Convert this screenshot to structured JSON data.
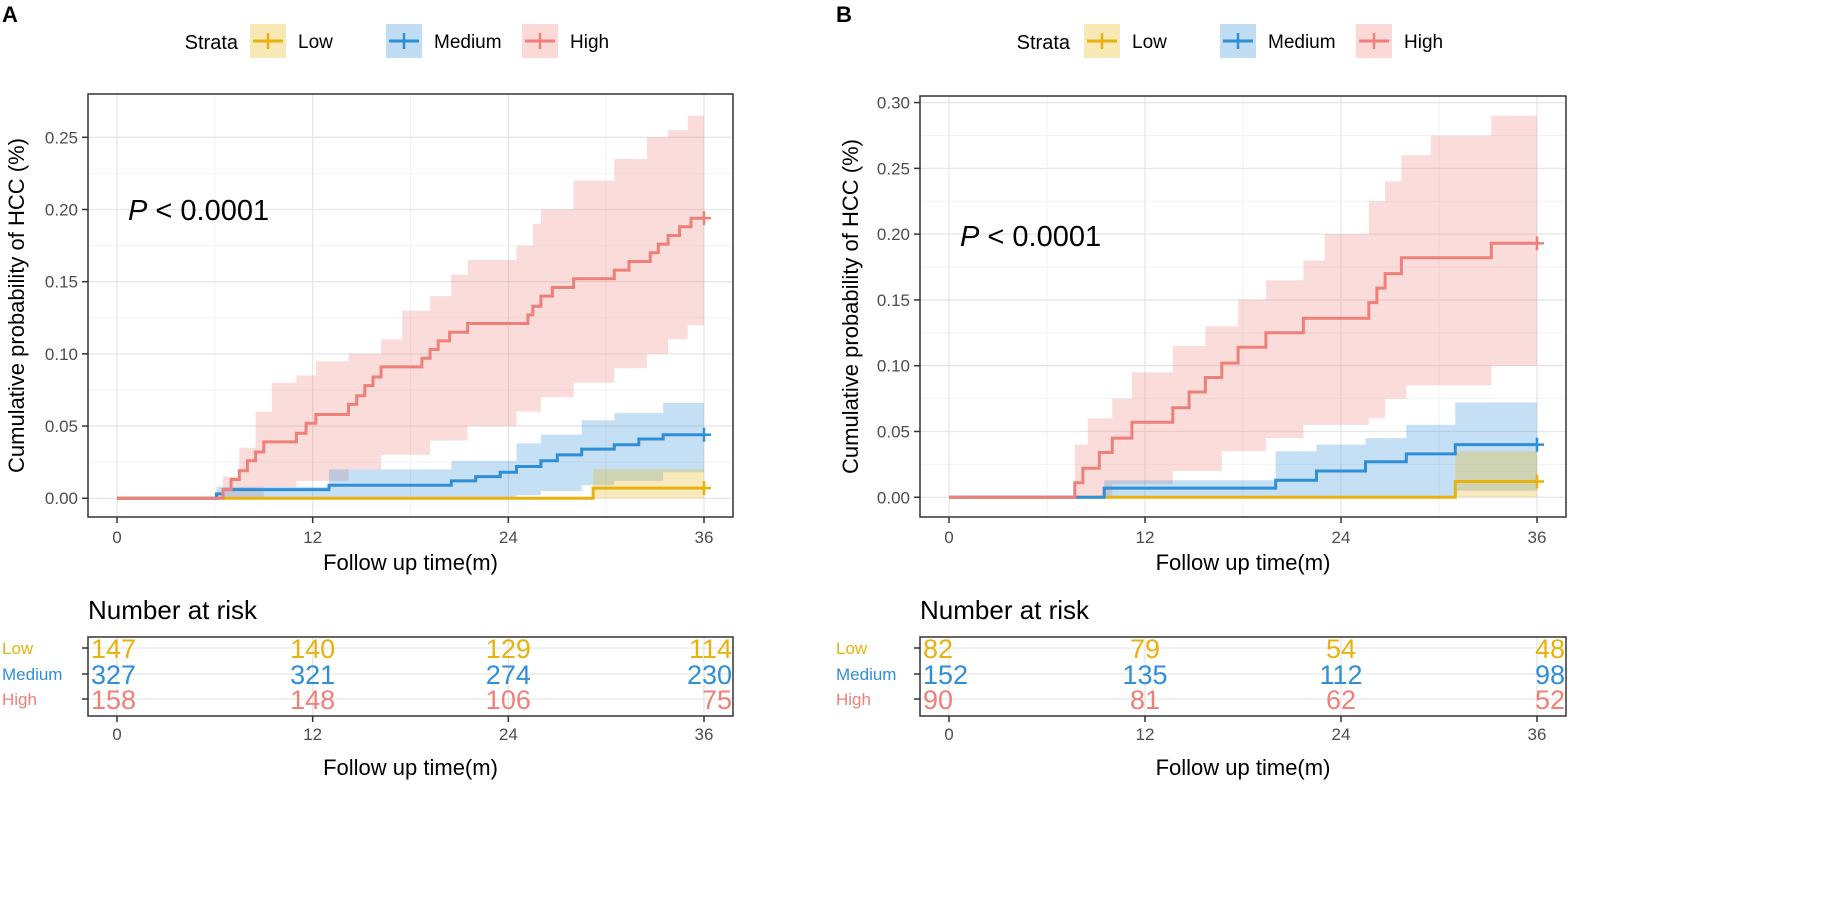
{
  "colors": {
    "low": "#E7B20D",
    "medium": "#2E8FD6",
    "high": "#EE8079",
    "axis": "#333333",
    "grid": "#e6e6e6",
    "tick_text": "#4d4d4d",
    "text": "#000000"
  },
  "chart_data": [
    {
      "type": "line",
      "subtype": "kaplan-meier cumulative incidence with confidence bands",
      "panel_label": "A",
      "legend": {
        "title": "Strata",
        "entries": [
          "Low",
          "Medium",
          "High"
        ],
        "placement": "top"
      },
      "xlabel": "Follow up time(m)",
      "ylabel": "Cumulative  probability of HCC (%)",
      "xlim": [
        0,
        36
      ],
      "ylim": [
        -0.013,
        0.28
      ],
      "xticks": [
        0,
        12,
        24,
        36
      ],
      "xtick_labels": [
        "0",
        "12",
        "24",
        "36"
      ],
      "yticks": [
        0,
        0.05,
        0.1,
        0.15,
        0.2,
        0.25
      ],
      "ytick_labels": [
        "0.00",
        "0.05",
        "0.10",
        "0.15",
        "0.20",
        "0.25"
      ],
      "annotation": {
        "italic": "P",
        "rest": " < 0.0001"
      },
      "series": [
        {
          "name": "Low",
          "steps": [
            [
              0,
              0
            ],
            [
              6.3,
              0
            ],
            [
              29.2,
              0.007
            ],
            [
              36,
              0.007
            ]
          ],
          "lower": [
            [
              6.3,
              0
            ],
            [
              29.2,
              0
            ],
            [
              36,
              0
            ]
          ],
          "upper": [
            [
              6.3,
              0
            ],
            [
              29.2,
              0.02
            ],
            [
              36,
              0.02
            ]
          ]
        },
        {
          "name": "Medium",
          "steps": [
            [
              0,
              0
            ],
            [
              6.1,
              0.003
            ],
            [
              6.5,
              0.006
            ],
            [
              13,
              0.009
            ],
            [
              20.5,
              0.012
            ],
            [
              22,
              0.015
            ],
            [
              23.5,
              0.018
            ],
            [
              24.5,
              0.022
            ],
            [
              26,
              0.026
            ],
            [
              27,
              0.03
            ],
            [
              28.5,
              0.034
            ],
            [
              30.5,
              0.037
            ],
            [
              32,
              0.041
            ],
            [
              33.5,
              0.044
            ],
            [
              36,
              0.044
            ]
          ],
          "lower": [
            [
              6.1,
              0
            ],
            [
              20.5,
              0
            ],
            [
              24.5,
              0.002
            ],
            [
              26,
              0.005
            ],
            [
              28.5,
              0.009
            ],
            [
              30.5,
              0.012
            ],
            [
              33.5,
              0.018
            ],
            [
              36,
              0.022
            ]
          ],
          "upper": [
            [
              6.1,
              0.008
            ],
            [
              13,
              0.02
            ],
            [
              20.5,
              0.026
            ],
            [
              24.5,
              0.038
            ],
            [
              26,
              0.044
            ],
            [
              28.5,
              0.054
            ],
            [
              30.5,
              0.059
            ],
            [
              33.5,
              0.066
            ],
            [
              36,
              0.066
            ]
          ]
        },
        {
          "name": "High",
          "steps": [
            [
              0,
              0
            ],
            [
              6.5,
              0.006
            ],
            [
              7,
              0.013
            ],
            [
              7.5,
              0.019
            ],
            [
              8,
              0.026
            ],
            [
              8.5,
              0.032
            ],
            [
              9,
              0.039
            ],
            [
              11,
              0.045
            ],
            [
              11.6,
              0.052
            ],
            [
              12.2,
              0.058
            ],
            [
              14.2,
              0.065
            ],
            [
              14.7,
              0.071
            ],
            [
              15.2,
              0.078
            ],
            [
              15.7,
              0.084
            ],
            [
              16.2,
              0.091
            ],
            [
              18.7,
              0.097
            ],
            [
              19.2,
              0.103
            ],
            [
              19.7,
              0.109
            ],
            [
              20.4,
              0.115
            ],
            [
              21.5,
              0.121
            ],
            [
              25.2,
              0.127
            ],
            [
              25.5,
              0.133
            ],
            [
              26,
              0.14
            ],
            [
              26.7,
              0.146
            ],
            [
              28,
              0.152
            ],
            [
              30.5,
              0.158
            ],
            [
              31.4,
              0.164
            ],
            [
              32.7,
              0.17
            ],
            [
              33.2,
              0.176
            ],
            [
              33.8,
              0.182
            ],
            [
              34.5,
              0.188
            ],
            [
              35.2,
              0.194
            ],
            [
              36,
              0.194
            ]
          ],
          "lower": [
            [
              6.5,
              0
            ],
            [
              9,
              0.008
            ],
            [
              11,
              0.012
            ],
            [
              14.2,
              0.02
            ],
            [
              16.2,
              0.03
            ],
            [
              19.2,
              0.04
            ],
            [
              21.5,
              0.05
            ],
            [
              24.5,
              0.06
            ],
            [
              26,
              0.07
            ],
            [
              28,
              0.08
            ],
            [
              30.5,
              0.09
            ],
            [
              32.5,
              0.1
            ],
            [
              33.8,
              0.11
            ],
            [
              35,
              0.12
            ],
            [
              36,
              0.125
            ]
          ],
          "upper": [
            [
              6.5,
              0.015
            ],
            [
              7.5,
              0.035
            ],
            [
              8.5,
              0.06
            ],
            [
              9.5,
              0.08
            ],
            [
              11,
              0.085
            ],
            [
              12.2,
              0.095
            ],
            [
              14.2,
              0.1
            ],
            [
              16.2,
              0.11
            ],
            [
              17.5,
              0.13
            ],
            [
              19.2,
              0.14
            ],
            [
              20.5,
              0.155
            ],
            [
              21.5,
              0.165
            ],
            [
              24.5,
              0.175
            ],
            [
              25.5,
              0.19
            ],
            [
              26,
              0.2
            ],
            [
              28,
              0.22
            ],
            [
              30.5,
              0.235
            ],
            [
              32.5,
              0.25
            ],
            [
              33.8,
              0.255
            ],
            [
              35,
              0.265
            ],
            [
              36,
              0.268
            ]
          ]
        }
      ],
      "risk_table": {
        "title": "Number at risk",
        "xlabel": "Follow up time(m)",
        "times": [
          0,
          12,
          24,
          36
        ],
        "time_labels": [
          "0",
          "12",
          "24",
          "36"
        ],
        "rows": [
          {
            "name": "Low",
            "counts": [
              "147",
              "140",
              "129",
              "114"
            ]
          },
          {
            "name": "Medium",
            "counts": [
              "327",
              "321",
              "274",
              "230"
            ]
          },
          {
            "name": "High",
            "counts": [
              "158",
              "148",
              "106",
              "75"
            ]
          }
        ]
      }
    },
    {
      "type": "line",
      "subtype": "kaplan-meier cumulative incidence with confidence bands",
      "panel_label": "B",
      "legend": {
        "title": "Strata",
        "entries": [
          "Low",
          "Medium",
          "High"
        ],
        "placement": "top"
      },
      "xlabel": "Follow up time(m)",
      "ylabel": "Cumulative  probability of HCC (%)",
      "xlim": [
        0,
        36
      ],
      "ylim": [
        -0.015,
        0.305
      ],
      "xticks": [
        0,
        12,
        24,
        36
      ],
      "xtick_labels": [
        "0",
        "12",
        "24",
        "36"
      ],
      "yticks": [
        0,
        0.05,
        0.1,
        0.15,
        0.2,
        0.25,
        0.3
      ],
      "ytick_labels": [
        "0.00",
        "0.05",
        "0.10",
        "0.15",
        "0.20",
        "0.25",
        "0.30"
      ],
      "annotation": {
        "italic": "P",
        "rest": " < 0.0001"
      },
      "series": [
        {
          "name": "Low",
          "steps": [
            [
              0,
              0
            ],
            [
              9.8,
              0
            ],
            [
              31,
              0.012
            ],
            [
              36,
              0.012
            ]
          ],
          "lower": [
            [
              9.8,
              0
            ],
            [
              31,
              0
            ],
            [
              36,
              0
            ]
          ],
          "upper": [
            [
              9.8,
              0
            ],
            [
              31,
              0.035
            ],
            [
              36,
              0.035
            ]
          ]
        },
        {
          "name": "Medium",
          "steps": [
            [
              0,
              0
            ],
            [
              9.5,
              0.007
            ],
            [
              20,
              0.013
            ],
            [
              22.5,
              0.02
            ],
            [
              25.5,
              0.027
            ],
            [
              28,
              0.033
            ],
            [
              31,
              0.04
            ],
            [
              36,
              0.04
            ]
          ],
          "lower": [
            [
              9.5,
              0
            ],
            [
              28,
              0
            ],
            [
              31,
              0.005
            ],
            [
              36,
              0.005
            ]
          ],
          "upper": [
            [
              9.5,
              0.013
            ],
            [
              20,
              0.035
            ],
            [
              22.5,
              0.04
            ],
            [
              25.5,
              0.045
            ],
            [
              28,
              0.055
            ],
            [
              31,
              0.072
            ],
            [
              36,
              0.072
            ]
          ]
        },
        {
          "name": "High",
          "steps": [
            [
              0,
              0
            ],
            [
              7.7,
              0.011
            ],
            [
              8.2,
              0.022
            ],
            [
              9.2,
              0.034
            ],
            [
              10,
              0.045
            ],
            [
              11.2,
              0.057
            ],
            [
              13.7,
              0.068
            ],
            [
              14.7,
              0.08
            ],
            [
              15.7,
              0.091
            ],
            [
              16.7,
              0.102
            ],
            [
              17.7,
              0.114
            ],
            [
              19.4,
              0.125
            ],
            [
              21.7,
              0.136
            ],
            [
              25.7,
              0.148
            ],
            [
              26.2,
              0.159
            ],
            [
              26.7,
              0.17
            ],
            [
              27.7,
              0.182
            ],
            [
              33.2,
              0.193
            ],
            [
              36,
              0.193
            ]
          ],
          "lower": [
            [
              7.7,
              0
            ],
            [
              10,
              0.01
            ],
            [
              13.7,
              0.02
            ],
            [
              16.7,
              0.035
            ],
            [
              19.4,
              0.045
            ],
            [
              21.7,
              0.055
            ],
            [
              25.7,
              0.06
            ],
            [
              26.7,
              0.075
            ],
            [
              28,
              0.085
            ],
            [
              33.2,
              0.1
            ],
            [
              36,
              0.1
            ]
          ],
          "upper": [
            [
              7.7,
              0.04
            ],
            [
              8.5,
              0.06
            ],
            [
              10,
              0.075
            ],
            [
              11.2,
              0.095
            ],
            [
              13.7,
              0.115
            ],
            [
              15.7,
              0.13
            ],
            [
              17.7,
              0.15
            ],
            [
              19.4,
              0.165
            ],
            [
              21.7,
              0.18
            ],
            [
              23,
              0.2
            ],
            [
              25.7,
              0.225
            ],
            [
              26.7,
              0.24
            ],
            [
              27.7,
              0.26
            ],
            [
              29.5,
              0.275
            ],
            [
              33.2,
              0.29
            ],
            [
              36,
              0.29
            ]
          ]
        }
      ],
      "risk_table": {
        "title": "Number at risk",
        "xlabel": "Follow up time(m)",
        "times": [
          0,
          12,
          24,
          36
        ],
        "time_labels": [
          "0",
          "12",
          "24",
          "36"
        ],
        "rows": [
          {
            "name": "Low",
            "counts": [
              "82",
              "79",
              "54",
              "48"
            ]
          },
          {
            "name": "Medium",
            "counts": [
              "152",
              "135",
              "112",
              "98"
            ]
          },
          {
            "name": "High",
            "counts": [
              "90",
              "81",
              "62",
              "52"
            ]
          }
        ]
      }
    }
  ]
}
